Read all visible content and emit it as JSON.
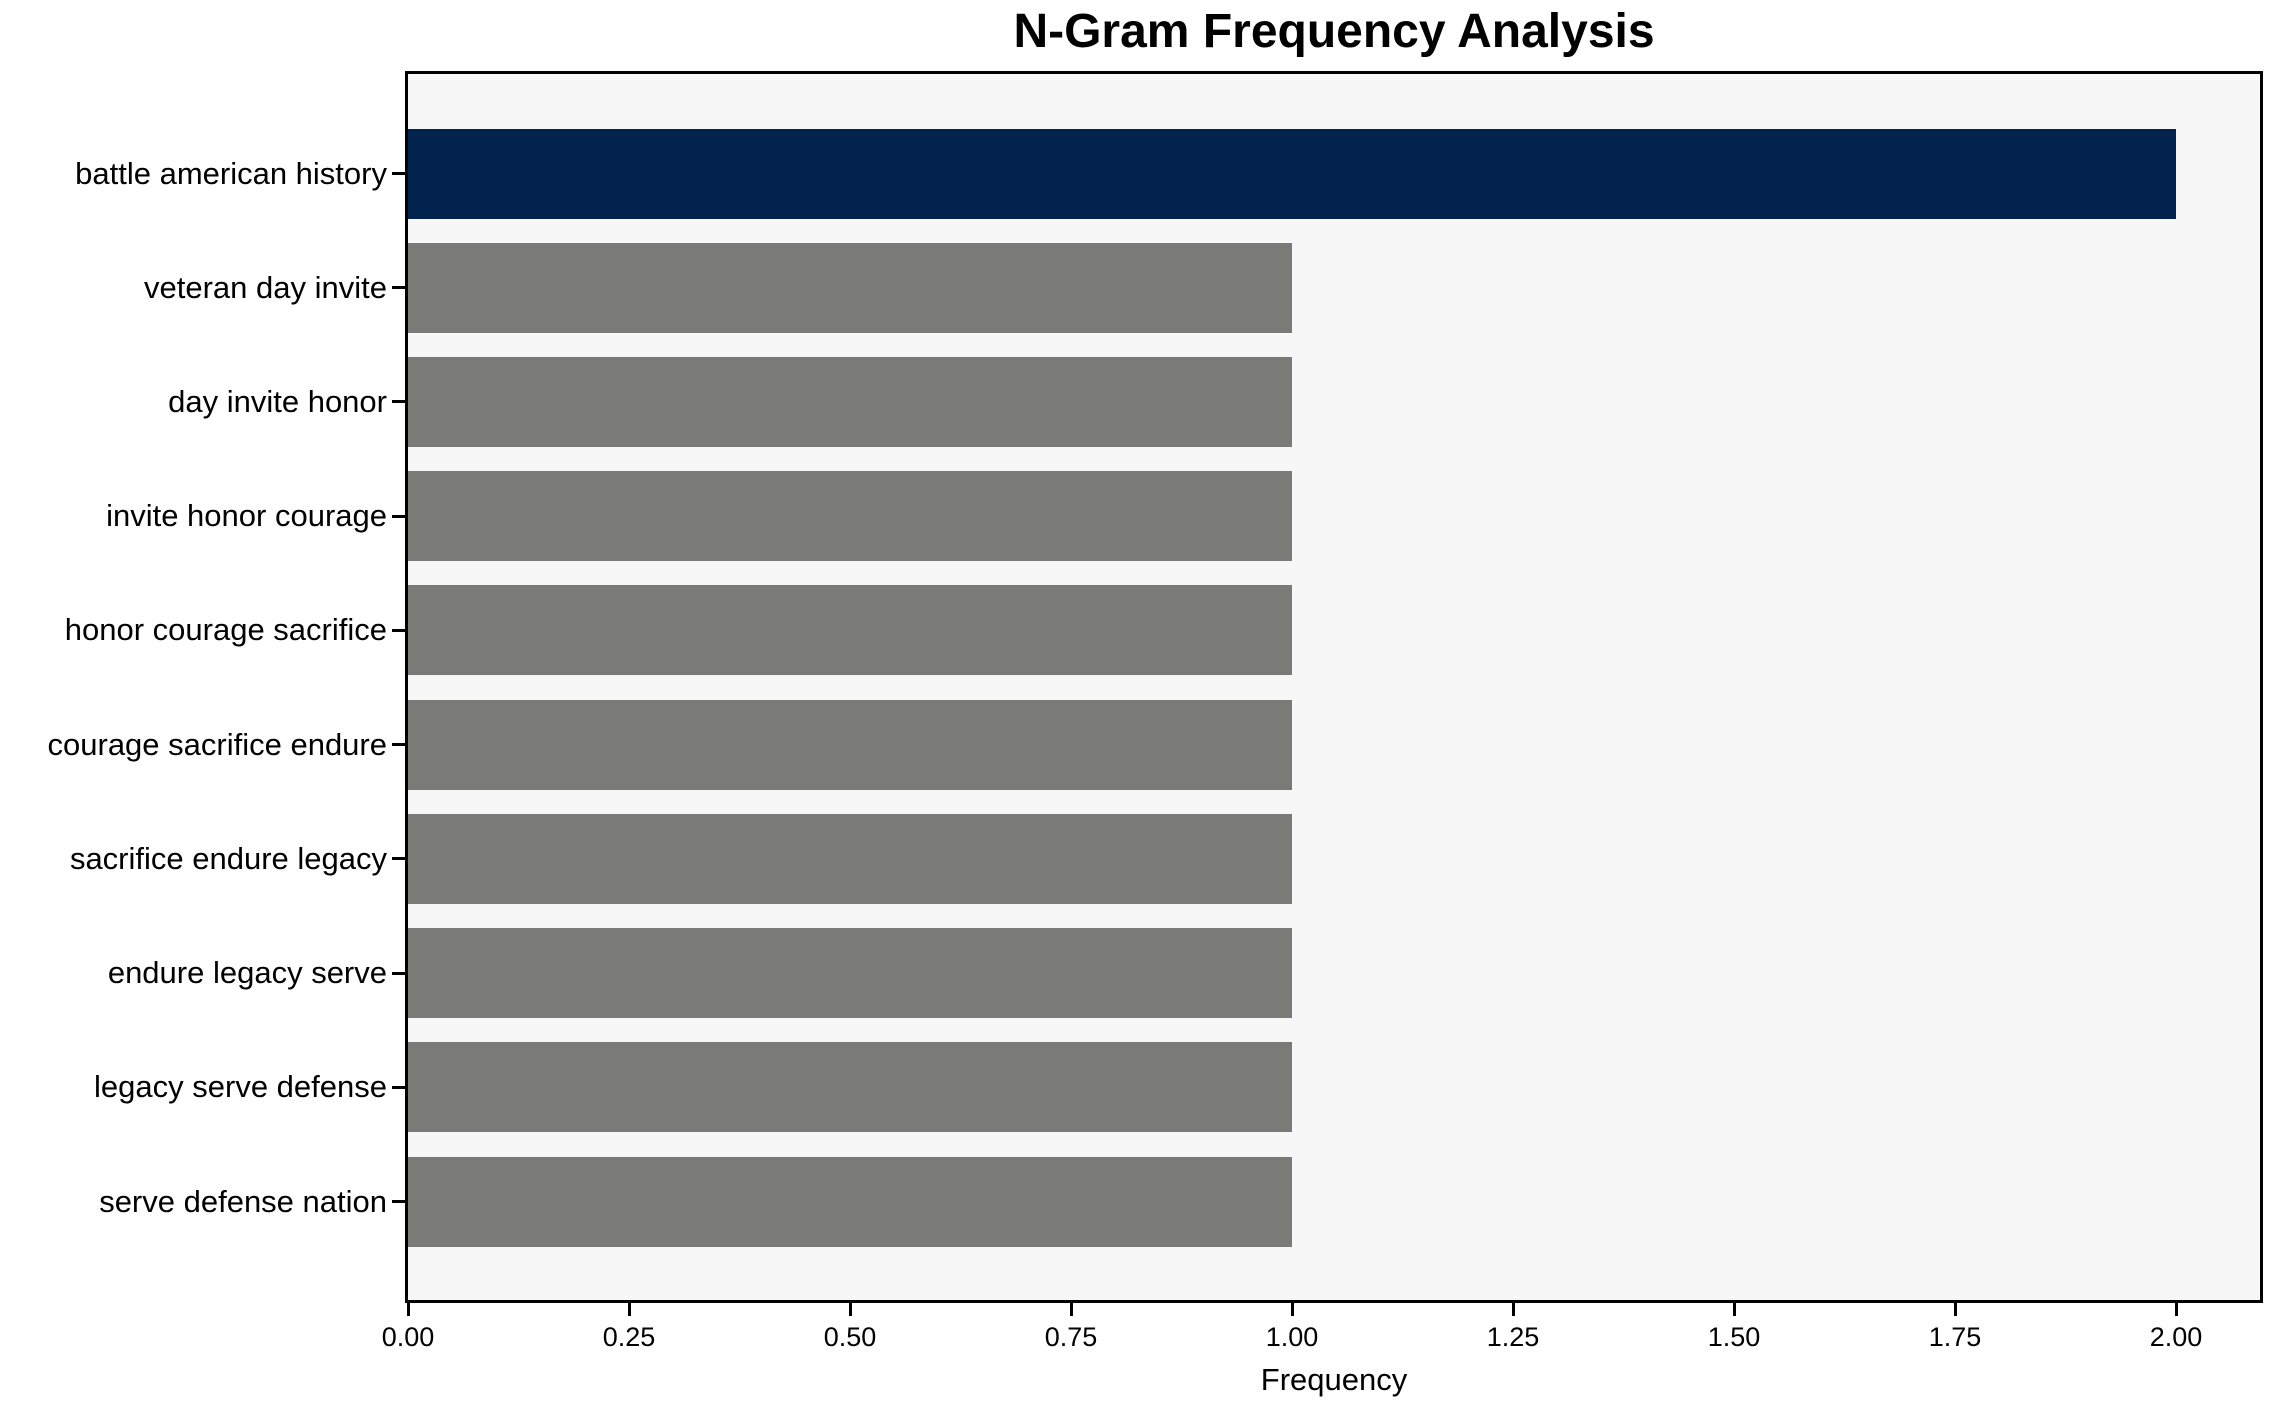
{
  "chart_data": {
    "type": "bar",
    "orientation": "horizontal",
    "title": "N-Gram Frequency Analysis",
    "xlabel": "Frequency",
    "ylabel": "",
    "categories": [
      "battle american history",
      "veteran day invite",
      "day invite honor",
      "invite honor courage",
      "honor courage sacrifice",
      "courage sacrifice endure",
      "sacrifice endure legacy",
      "endure legacy serve",
      "legacy serve defense",
      "serve defense nation"
    ],
    "values": [
      2,
      1,
      1,
      1,
      1,
      1,
      1,
      1,
      1,
      1
    ],
    "bar_colors": [
      "#02234e",
      "#7a7a77",
      "#7a7a77",
      "#7a7a77",
      "#7a7a77",
      "#7a7a77",
      "#7a7a77",
      "#7a7a77",
      "#7a7a77",
      "#7a7a77"
    ],
    "x_ticks": [
      0.0,
      0.25,
      0.5,
      0.75,
      1.0,
      1.25,
      1.5,
      1.75,
      2.0
    ],
    "x_tick_labels": [
      "0.00",
      "0.25",
      "0.50",
      "0.75",
      "1.00",
      "1.25",
      "1.50",
      "1.75",
      "2.00"
    ],
    "xlim": [
      0,
      2.095
    ],
    "grid": false,
    "legend": null,
    "colors": {
      "highlight": "#02234e",
      "default": "#7a7a77",
      "plot_background": "#f7f7f7",
      "frame": "#000000"
    }
  }
}
